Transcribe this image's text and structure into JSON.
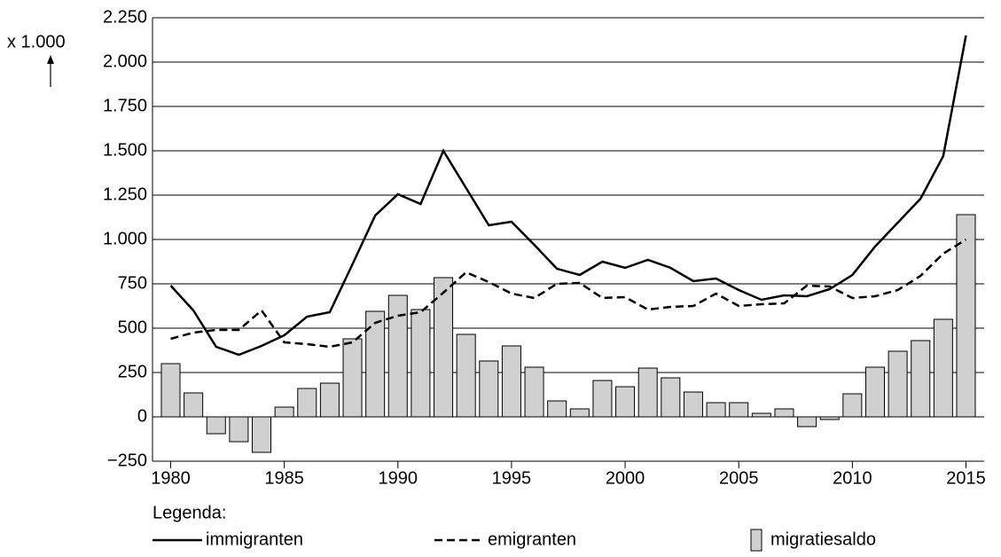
{
  "chart_data": {
    "type": "combo",
    "y_unit_label": "x 1.000",
    "legend_title": "Legenda:",
    "x": [
      1980,
      1981,
      1982,
      1983,
      1984,
      1985,
      1986,
      1987,
      1988,
      1989,
      1990,
      1991,
      1992,
      1993,
      1994,
      1995,
      1996,
      1997,
      1998,
      1999,
      2000,
      2001,
      2002,
      2003,
      2004,
      2005,
      2006,
      2007,
      2008,
      2009,
      2010,
      2011,
      2012,
      2013,
      2014,
      2015
    ],
    "xlim": [
      1979.2,
      2015.8
    ],
    "xticks": [
      1980,
      1985,
      1990,
      1995,
      2000,
      2005,
      2010,
      2015
    ],
    "ylim": [
      -250,
      2250
    ],
    "yticks": [
      {
        "value": -250,
        "label": "−250"
      },
      0,
      250,
      500,
      750,
      {
        "value": 1000,
        "label": "1.000"
      },
      {
        "value": 1250,
        "label": "1.250"
      },
      {
        "value": 1500,
        "label": "1.500"
      },
      {
        "value": 1750,
        "label": "1.750"
      },
      {
        "value": 2000,
        "label": "2.000"
      },
      {
        "value": 2250,
        "label": "2.250"
      }
    ],
    "grid": true,
    "series": [
      {
        "name": "immigranten",
        "type": "line",
        "dashed": false,
        "color": "#000000",
        "values": [
          740,
          600,
          395,
          350,
          400,
          460,
          565,
          590,
          860,
          1135,
          1255,
          1200,
          1500,
          1290,
          1080,
          1100,
          970,
          835,
          800,
          875,
          840,
          885,
          840,
          765,
          780,
          715,
          660,
          685,
          680,
          720,
          800,
          960,
          1095,
          1230,
          1470,
          2150
        ]
      },
      {
        "name": "emigranten",
        "type": "line",
        "dashed": true,
        "color": "#000000",
        "values": [
          440,
          475,
          490,
          490,
          600,
          420,
          410,
          395,
          420,
          530,
          570,
          590,
          700,
          815,
          760,
          695,
          670,
          750,
          755,
          670,
          675,
          605,
          620,
          625,
          695,
          625,
          635,
          640,
          740,
          735,
          670,
          680,
          715,
          795,
          920,
          1000
        ]
      },
      {
        "name": "migratiesaldo",
        "type": "bar",
        "dashed": false,
        "color": "#d0d0d0",
        "values": [
          300,
          135,
          -95,
          -140,
          -200,
          55,
          160,
          190,
          440,
          595,
          685,
          605,
          785,
          465,
          315,
          400,
          280,
          90,
          45,
          205,
          170,
          275,
          220,
          140,
          80,
          80,
          20,
          45,
          -55,
          -15,
          130,
          280,
          370,
          430,
          550,
          1140
        ]
      }
    ]
  }
}
